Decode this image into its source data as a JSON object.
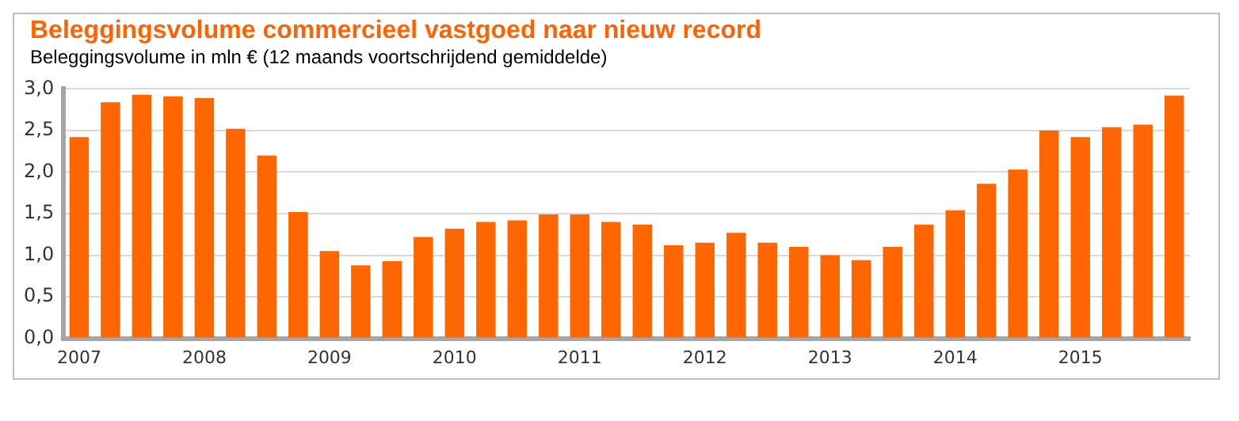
{
  "chart_data": {
    "type": "bar",
    "title": "Beleggingsvolume commercieel vastgoed naar nieuw record",
    "subtitle": "Beleggingsvolume in mln € (12 maands voortschrijdend gemiddelde)",
    "categories": [
      "2007",
      null,
      null,
      null,
      "2008",
      null,
      null,
      null,
      "2009",
      null,
      null,
      null,
      "2010",
      null,
      null,
      null,
      "2011",
      null,
      null,
      null,
      "2012",
      null,
      null,
      null,
      "2013",
      null,
      null,
      null,
      "2014",
      null,
      null,
      null,
      "2015",
      null,
      null,
      null
    ],
    "values": [
      2.42,
      2.84,
      2.93,
      2.91,
      2.89,
      2.52,
      2.2,
      1.52,
      1.05,
      0.88,
      0.93,
      1.22,
      1.32,
      1.4,
      1.42,
      1.49,
      1.49,
      1.4,
      1.37,
      1.12,
      1.15,
      1.27,
      1.15,
      1.1,
      1.0,
      0.94,
      1.1,
      1.37,
      1.54,
      1.86,
      2.03,
      2.5,
      2.42,
      2.54,
      2.57,
      2.92
    ],
    "color": "#ff6600",
    "ylim": [
      0,
      3
    ],
    "yticks": [
      {
        "value": 0,
        "label": "0,0"
      },
      {
        "value": 0.5,
        "label": "0,5"
      },
      {
        "value": 1,
        "label": "1,0"
      },
      {
        "value": 1.5,
        "label": "1,5"
      },
      {
        "value": 2,
        "label": "2,0"
      },
      {
        "value": 2.5,
        "label": "2,5"
      },
      {
        "value": 3,
        "label": "3,0"
      }
    ],
    "grid": "y"
  }
}
